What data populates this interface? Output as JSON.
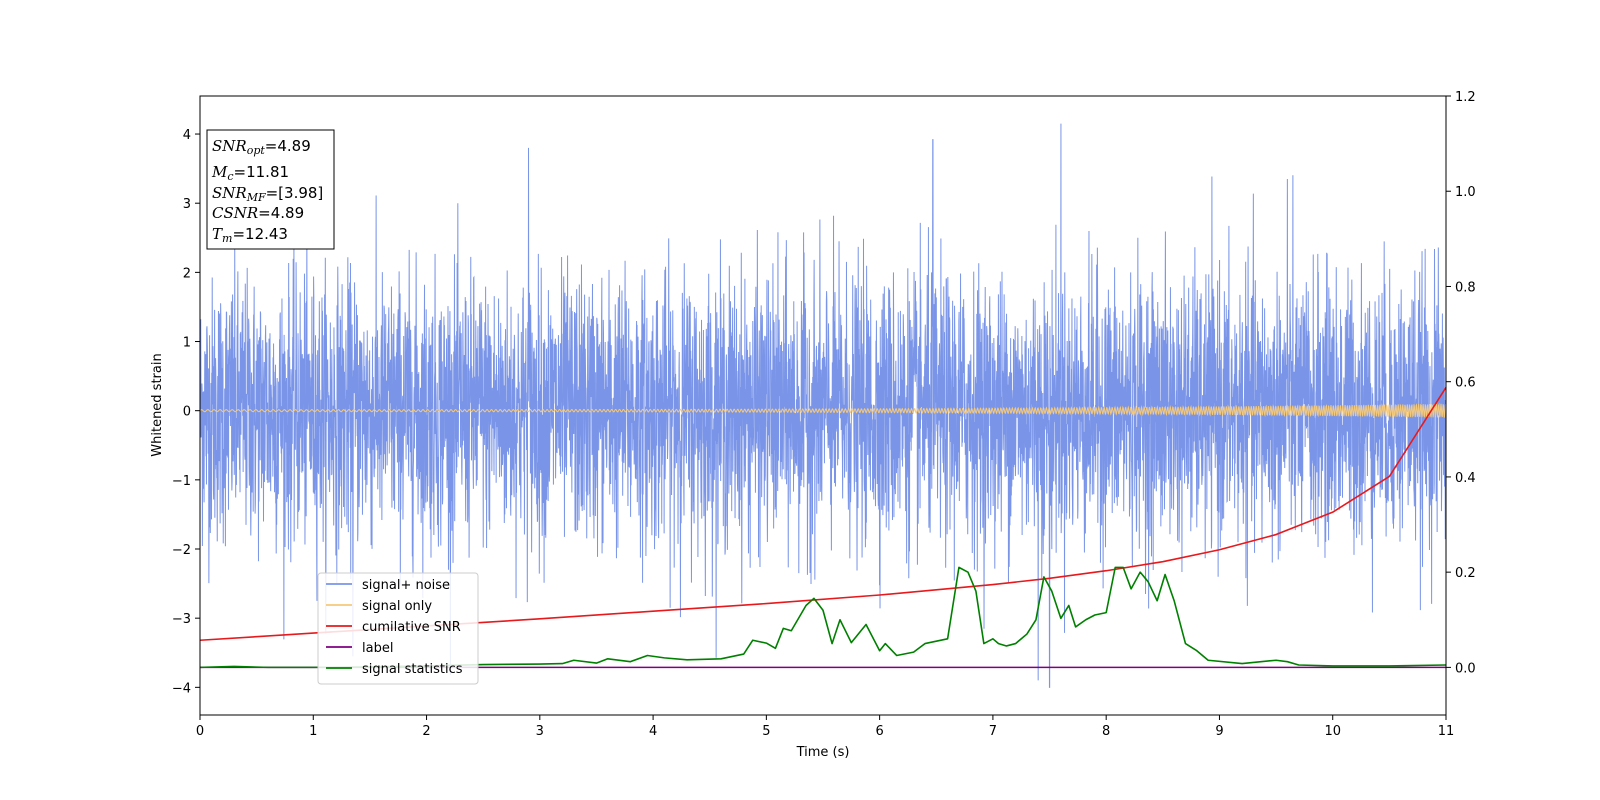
{
  "chart_data": {
    "type": "line",
    "xlabel": "Time (s)",
    "ylabel": "Whitened strain",
    "xlim": [
      0,
      11
    ],
    "ylim_left": [
      -4.4,
      4.55
    ],
    "ylim_right": [
      -0.1,
      1.2
    ],
    "x_ticks": [
      "0",
      "1",
      "2",
      "3",
      "4",
      "5",
      "6",
      "7",
      "8",
      "9",
      "10",
      "11"
    ],
    "y_ticks_left": [
      "−4",
      "−3",
      "−2",
      "−1",
      "0",
      "1",
      "2",
      "3",
      "4"
    ],
    "y_ticks_right": [
      "0.0",
      "0.2",
      "0.4",
      "0.6",
      "0.8",
      "1.0",
      "1.2"
    ],
    "legend_position": "lower-left",
    "info_box": {
      "snr_opt": {
        "var": "SNR",
        "sub": "opt",
        "value": "=4.89"
      },
      "mc": {
        "var": "M",
        "sub": "c",
        "value": "=11.81"
      },
      "snr_mf": {
        "var": "SNR",
        "sub": "MF",
        "value": "=[3.98]"
      },
      "csnr": {
        "var": "CSNR",
        "sub": "",
        "value": "=4.89"
      },
      "tm": {
        "var": "T",
        "sub": "m",
        "value": "=12.43"
      }
    },
    "series": [
      {
        "name": "signal+ noise",
        "axis": "left",
        "color": "#7a95e8",
        "kind": "noise",
        "std": 0.95,
        "peaks": [
          [
            2.9,
            3.8
          ],
          [
            6.47,
            3.92
          ],
          [
            7.6,
            4.15
          ],
          [
            7.5,
            -4.0
          ],
          [
            7.4,
            -3.9
          ],
          [
            9.6,
            3.35
          ],
          [
            1.35,
            -3.55
          ]
        ]
      },
      {
        "name": "signal only",
        "axis": "left",
        "color": "#f5c97a",
        "kind": "chirp",
        "amp_start": 0.015,
        "amp_end": 0.1
      },
      {
        "name": "cumilative SNR",
        "axis": "right",
        "color": "#e8191c",
        "x": [
          0,
          1,
          2,
          3,
          4,
          5,
          6,
          7,
          7.5,
          8,
          8.5,
          9,
          9.5,
          10,
          10.5,
          11
        ],
        "y": [
          0.057,
          0.072,
          0.087,
          0.102,
          0.118,
          0.134,
          0.152,
          0.174,
          0.187,
          0.203,
          0.222,
          0.247,
          0.279,
          0.326,
          0.401,
          0.588
        ]
      },
      {
        "name": "label",
        "axis": "right",
        "color": "#800080",
        "x": [
          0,
          11
        ],
        "y": [
          0,
          0
        ]
      },
      {
        "name": "signal statistics",
        "axis": "right",
        "color": "#008000",
        "x": [
          0,
          0.3,
          0.6,
          1,
          1.5,
          2,
          2.5,
          3,
          3.2,
          3.3,
          3.5,
          3.6,
          3.8,
          3.95,
          4.1,
          4.3,
          4.6,
          4.8,
          4.88,
          5.0,
          5.08,
          5.15,
          5.22,
          5.35,
          5.42,
          5.5,
          5.58,
          5.65,
          5.75,
          5.88,
          6.0,
          6.05,
          6.15,
          6.3,
          6.4,
          6.5,
          6.6,
          6.7,
          6.78,
          6.85,
          6.92,
          7.0,
          7.05,
          7.12,
          7.2,
          7.3,
          7.38,
          7.45,
          7.52,
          7.6,
          7.67,
          7.73,
          7.82,
          7.9,
          8.0,
          8.08,
          8.15,
          8.22,
          8.3,
          8.37,
          8.45,
          8.52,
          8.6,
          8.7,
          8.8,
          8.9,
          9.2,
          9.5,
          9.6,
          9.7,
          10,
          10.5,
          11
        ],
        "y": [
          0.0,
          0.002,
          0.0,
          0.0,
          0.001,
          0.003,
          0.006,
          0.007,
          0.008,
          0.015,
          0.009,
          0.018,
          0.012,
          0.025,
          0.02,
          0.016,
          0.018,
          0.028,
          0.057,
          0.051,
          0.04,
          0.082,
          0.077,
          0.13,
          0.145,
          0.12,
          0.05,
          0.1,
          0.052,
          0.09,
          0.035,
          0.05,
          0.025,
          0.032,
          0.05,
          0.055,
          0.06,
          0.21,
          0.2,
          0.16,
          0.05,
          0.06,
          0.05,
          0.045,
          0.05,
          0.07,
          0.1,
          0.19,
          0.16,
          0.103,
          0.13,
          0.085,
          0.1,
          0.11,
          0.115,
          0.21,
          0.21,
          0.165,
          0.2,
          0.18,
          0.14,
          0.195,
          0.14,
          0.05,
          0.035,
          0.015,
          0.008,
          0.015,
          0.012,
          0.005,
          0.003,
          0.003,
          0.005
        ]
      }
    ]
  }
}
